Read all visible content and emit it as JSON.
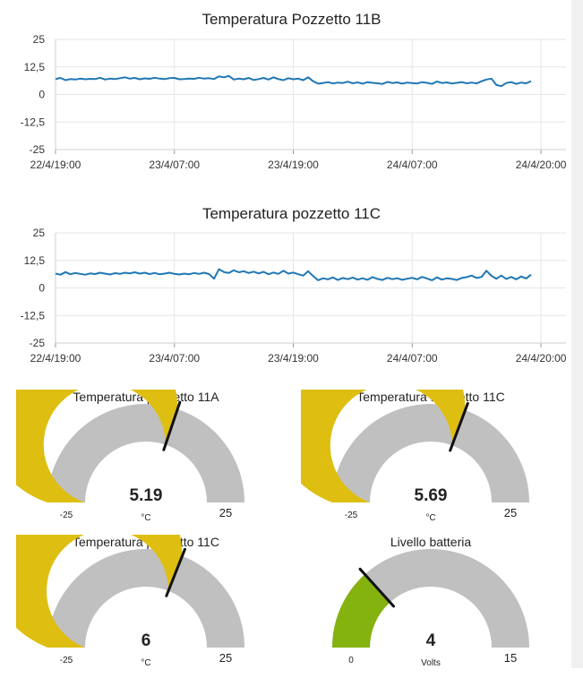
{
  "colors": {
    "line": "#1f77b4",
    "grid": "#e6e6e6",
    "gauge_fill": "#dfbe12",
    "gauge_bg": "#c0c0c0",
    "battery_fill": "#84b20f",
    "needle": "#111111"
  },
  "chart_data": [
    {
      "type": "line",
      "title": "Temperatura Pozzetto 11B",
      "ylim": [
        -25,
        25
      ],
      "yticks": [
        "25",
        "12,5",
        "0",
        "-12,5",
        "-25"
      ],
      "xticks": [
        "22/4/19:00",
        "23/4/07:00",
        "23/4/19:00",
        "24/4/07:00",
        "24/4/20:00"
      ],
      "x_hours": [
        0,
        12,
        24,
        36,
        49
      ],
      "series": [
        {
          "name": "Temperatura Pozzetto 11B",
          "x": [
            0,
            0.5,
            1,
            1.5,
            2,
            2.5,
            3,
            3.5,
            4,
            4.5,
            5,
            5.5,
            6,
            6.5,
            7,
            7.5,
            8,
            8.5,
            9,
            9.5,
            10,
            10.5,
            11,
            11.5,
            12,
            12.5,
            13,
            13.5,
            14,
            14.5,
            15,
            15.5,
            16,
            16.5,
            17,
            17.5,
            18,
            18.5,
            19,
            19.5,
            20,
            20.5,
            21,
            21.5,
            22,
            22.5,
            23,
            23.5,
            24,
            24.5,
            25,
            25.5,
            26,
            26.5,
            27,
            27.5,
            28,
            28.5,
            29,
            29.5,
            30,
            30.5,
            31,
            31.5,
            32,
            32.5,
            33,
            33.5,
            34,
            34.5,
            35,
            35.5,
            36,
            36.5,
            37,
            37.5,
            38,
            38.5,
            39,
            39.5,
            40,
            40.5,
            41,
            41.5,
            42,
            42.5,
            43,
            43.5,
            44,
            44.5,
            45,
            45.5,
            46,
            46.5,
            47,
            47.5,
            48
          ],
          "values": [
            7,
            7.5,
            6.5,
            7,
            6.8,
            7.2,
            6.9,
            7.1,
            7,
            7.6,
            6.8,
            7.2,
            7,
            7.4,
            7.8,
            7.2,
            7.5,
            6.9,
            7.3,
            7.1,
            7.6,
            7.2,
            7,
            7.4,
            7.5,
            6.9,
            7,
            7.2,
            7.1,
            7.6,
            7.2,
            7.4,
            7,
            8.2,
            7.8,
            8.4,
            6.8,
            7.2,
            6.9,
            7.5,
            6.6,
            7,
            7.5,
            6.8,
            7.8,
            7,
            6.5,
            7.4,
            6.9,
            7.2,
            6.5,
            7.8,
            6,
            4.9,
            5.2,
            5.6,
            5,
            5.4,
            5.2,
            5.8,
            5.1,
            5.5,
            4.9,
            5.6,
            5.3,
            5.1,
            4.8,
            5.7,
            5.2,
            5.5,
            4.9,
            5.4,
            5.2,
            5,
            5.6,
            5.3,
            4.8,
            5.9,
            5.2,
            5.5,
            5,
            5.3,
            5.6,
            5.1,
            5.4,
            5,
            6,
            6.8,
            7.2,
            4.3,
            3.8,
            5.2,
            5.6,
            4.8,
            5.4,
            5.1,
            6
          ]
        }
      ]
    },
    {
      "type": "line",
      "title": "Temperatura pozzetto 11C",
      "ylim": [
        -25,
        25
      ],
      "yticks": [
        "25",
        "12,5",
        "0",
        "-12,5",
        "-25"
      ],
      "xticks": [
        "22/4/19:00",
        "23/4/07:00",
        "23/4/19:00",
        "24/4/07:00",
        "24/4/20:00"
      ],
      "x_hours": [
        0,
        12,
        24,
        36,
        49
      ],
      "series": [
        {
          "name": "Temperatura pozzetto 11C",
          "x": [
            0,
            0.5,
            1,
            1.5,
            2,
            2.5,
            3,
            3.5,
            4,
            4.5,
            5,
            5.5,
            6,
            6.5,
            7,
            7.5,
            8,
            8.5,
            9,
            9.5,
            10,
            10.5,
            11,
            11.5,
            12,
            12.5,
            13,
            13.5,
            14,
            14.5,
            15,
            15.5,
            16,
            16.5,
            17,
            17.5,
            18,
            18.5,
            19,
            19.5,
            20,
            20.5,
            21,
            21.5,
            22,
            22.5,
            23,
            23.5,
            24,
            24.5,
            25,
            25.5,
            26,
            26.5,
            27,
            27.5,
            28,
            28.5,
            29,
            29.5,
            30,
            30.5,
            31,
            31.5,
            32,
            32.5,
            33,
            33.5,
            34,
            34.5,
            35,
            35.5,
            36,
            36.5,
            37,
            37.5,
            38,
            38.5,
            39,
            39.5,
            40,
            40.5,
            41,
            41.5,
            42,
            42.5,
            43,
            43.5,
            44,
            44.5,
            45,
            45.5,
            46,
            46.5,
            47,
            47.5,
            48
          ],
          "values": [
            6.5,
            6,
            7.2,
            6.2,
            6.8,
            6.4,
            6,
            6.6,
            6.3,
            6.9,
            6.5,
            6.1,
            6.7,
            6.4,
            6.9,
            6.6,
            7.1,
            6.5,
            6.9,
            6.3,
            6.8,
            6.2,
            6.5,
            6.9,
            6.4,
            6.1,
            6.5,
            6.2,
            6.8,
            6.4,
            6.9,
            6.3,
            4.2,
            8.5,
            7.2,
            6.8,
            8,
            7.1,
            7.6,
            6.8,
            7.4,
            6.6,
            7.3,
            6.2,
            7,
            6.4,
            7.8,
            6.5,
            7,
            6.2,
            5.6,
            7.6,
            5.4,
            3.5,
            4.4,
            3.9,
            4.8,
            3.6,
            4.5,
            4,
            4.7,
            3.8,
            4.4,
            3.7,
            4.9,
            4.1,
            3.6,
            4.6,
            4,
            4.4,
            3.7,
            4.2,
            4.6,
            3.9,
            5,
            4.3,
            3.5,
            4.8,
            3.8,
            4.4,
            4.1,
            3.6,
            4.5,
            4.9,
            5.6,
            4.5,
            5,
            7.8,
            5.5,
            4.2,
            5.6,
            4.1,
            5,
            3.9,
            5.2,
            4.3,
            6
          ]
        }
      ]
    }
  ],
  "gauges": [
    {
      "title": "Temperatura pozzetto 11A",
      "value": 5.19,
      "value_text": "5.19",
      "unit": "°C",
      "min": -25,
      "max": 25,
      "min_label": "-25",
      "max_label": "25",
      "kind": "temp"
    },
    {
      "title": "Temperatura Pozzetto 11C",
      "value": 5.69,
      "value_text": "5.69",
      "unit": "°C",
      "min": -25,
      "max": 25,
      "min_label": "-25",
      "max_label": "25",
      "kind": "temp"
    },
    {
      "title": "Temperatura pozzetto 11C",
      "value": 6,
      "value_text": "6",
      "unit": "°C",
      "min": -25,
      "max": 25,
      "min_label": "-25",
      "max_label": "25",
      "kind": "temp"
    },
    {
      "title": "Livello batteria",
      "value": 4,
      "value_text": "4",
      "unit": "Volts",
      "min": 0,
      "max": 15,
      "min_label": "0",
      "max_label": "15",
      "kind": "battery"
    }
  ]
}
